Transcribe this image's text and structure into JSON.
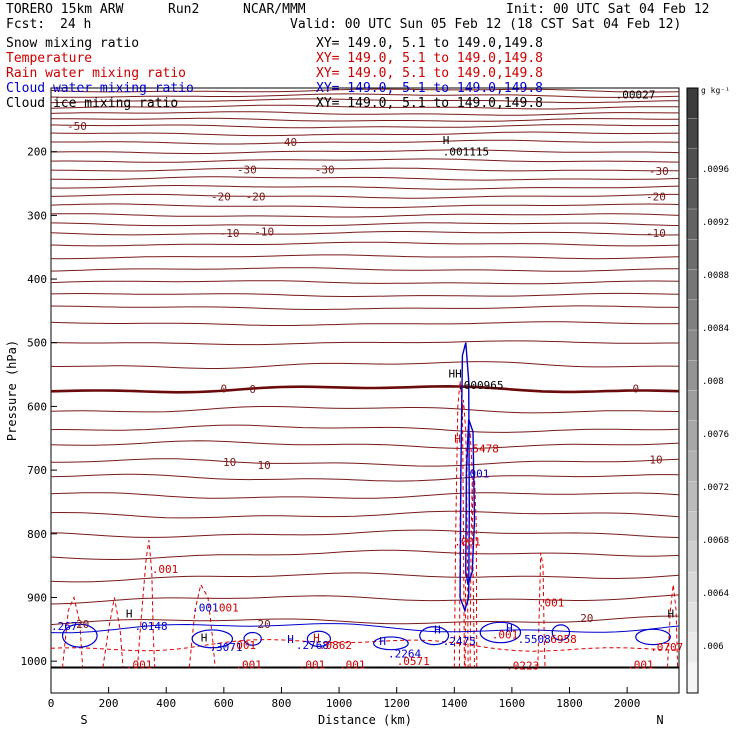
{
  "header": {
    "model": "TORERO 15km ARW",
    "run": "Run2",
    "org": "NCAR/MMM",
    "init": "Init: 00 UTC Sat 04 Feb 12",
    "fcst_label": "Fcst:",
    "fcst_value": "24 h",
    "valid": "Valid: 00 UTC Sun 05 Feb 12 (18 CST Sat 04 Feb 12)"
  },
  "legend": [
    {
      "name": "Snow mixing ratio",
      "xy": "XY= 149.0, 5.1 to 149.0,149.8",
      "color": "#000000"
    },
    {
      "name": "Temperature",
      "xy": "XY= 149.0, 5.1 to 149.0,149.8",
      "color": "#cc0000"
    },
    {
      "name": "Rain water mixing ratio",
      "xy": "XY= 149.0, 5.1 to 149.0,149.8",
      "color": "#cc0000"
    },
    {
      "name": "Cloud water mixing ratio",
      "xy": "XY= 149.0, 5.1 to 149.0,149.8",
      "color": "#0000cc"
    },
    {
      "name": "Cloud ice mixing ratio",
      "xy": "XY= 149.0, 5.1 to 149.0,149.8",
      "color": "#000000"
    }
  ],
  "chart_data": {
    "type": "contour",
    "xlabel": "Distance (km)",
    "ylabel": "Pressure (hPa)",
    "xlim": [
      0,
      2180
    ],
    "ylim": [
      1050,
      100
    ],
    "x_ticks": [
      0,
      200,
      400,
      600,
      800,
      1000,
      1200,
      1400,
      1600,
      1800,
      2000
    ],
    "y_ticks": [
      200,
      300,
      400,
      500,
      600,
      700,
      800,
      900,
      1000
    ],
    "x_end_labels": {
      "left": "S",
      "right": "N"
    },
    "colorbar": {
      "unit": "g kg⁻¹",
      "ticks": [
        ".0096",
        ".0092",
        ".0088",
        ".0084",
        ".008",
        ".0076",
        ".0072",
        ".0068",
        ".0064",
        ".006"
      ]
    },
    "temperature_contours": [
      {
        "label": "-50",
        "p_left": 160,
        "p_right": 160
      },
      {
        "label": "-40",
        "p_left": 185,
        "p_right": 188
      },
      {
        "label": "-30",
        "p_left": 228,
        "p_right": 228
      },
      {
        "label": "-20",
        "p_left": 268,
        "p_right": 270
      },
      {
        "label": "-10",
        "p_left": 328,
        "p_right": 325
      },
      {
        "label": "0",
        "p_left": 573,
        "p_right": 572
      },
      {
        "label": "10",
        "p_left": 688,
        "p_right": 692
      },
      {
        "label": "20",
        "p_left": 940,
        "p_right": 925
      }
    ],
    "temperature_labels": [
      {
        "text": "-50",
        "x": 90,
        "p": 160
      },
      {
        "text": "-40",
        "x": 820,
        "p": 185
      },
      {
        "text": "-30",
        "x": 680,
        "p": 228
      },
      {
        "text": "-30",
        "x": 950,
        "p": 228
      },
      {
        "text": "-30",
        "x": 2110,
        "p": 230
      },
      {
        "text": "-20",
        "x": 590,
        "p": 270
      },
      {
        "text": "-20",
        "x": 710,
        "p": 270
      },
      {
        "text": "-20",
        "x": 2100,
        "p": 270
      },
      {
        "text": "-10",
        "x": 620,
        "p": 328
      },
      {
        "text": "-10",
        "x": 740,
        "p": 325
      },
      {
        "text": "-10",
        "x": 2100,
        "p": 328
      },
      {
        "text": "0",
        "x": 600,
        "p": 572
      },
      {
        "text": "0",
        "x": 700,
        "p": 573
      },
      {
        "text": "0",
        "x": 2030,
        "p": 572
      },
      {
        "text": "10",
        "x": 620,
        "p": 687
      },
      {
        "text": "10",
        "x": 740,
        "p": 692
      },
      {
        "text": "10",
        "x": 2100,
        "p": 683
      },
      {
        "text": "20",
        "x": 110,
        "p": 942
      },
      {
        "text": "20",
        "x": 740,
        "p": 942
      },
      {
        "text": "20",
        "x": 1860,
        "p": 932
      }
    ],
    "value_labels": [
      {
        "text": "H",
        "x": 1360,
        "p": 182,
        "color": "#000000"
      },
      {
        "text": ".001115",
        "x": 1360,
        "p": 200,
        "color": "#000000"
      },
      {
        "text": ".00027",
        "x": 1960,
        "p": 110,
        "color": "#000000"
      },
      {
        "text": "HH",
        "x": 1380,
        "p": 548,
        "color": "#000000"
      },
      {
        "text": ".000965",
        "x": 1410,
        "p": 566,
        "color": "#000000"
      },
      {
        "text": "H",
        "x": 1400,
        "p": 650,
        "color": "#cc0000"
      },
      {
        "text": ".5478",
        "x": 1440,
        "p": 666,
        "color": "#cc0000"
      },
      {
        "text": ".001",
        "x": 1430,
        "p": 705,
        "color": "#0000cc"
      },
      {
        "text": ".001",
        "x": 1400,
        "p": 812,
        "color": "#cc0000"
      },
      {
        "text": ".001",
        "x": 350,
        "p": 855,
        "color": "#cc0000"
      },
      {
        "text": ".001",
        "x": 1690,
        "p": 908,
        "color": "#cc0000"
      },
      {
        "text": "H",
        "x": 260,
        "p": 925,
        "color": "#000000"
      },
      {
        "text": ".0148",
        "x": 290,
        "p": 945,
        "color": "#0000cc"
      },
      {
        "text": ".001",
        "x": 490,
        "p": 916,
        "color": "#0000cc"
      },
      {
        "text": ".001",
        "x": 560,
        "p": 916,
        "color": "#cc0000"
      },
      {
        "text": ".267",
        "x": 0,
        "p": 945,
        "color": "#0000cc"
      },
      {
        "text": "H",
        "x": 520,
        "p": 963,
        "color": "#000000"
      },
      {
        "text": ".3071",
        "x": 550,
        "p": 978,
        "color": "#0000cc"
      },
      {
        "text": ".001",
        "x": 620,
        "p": 975,
        "color": "#cc0000"
      },
      {
        "text": "H",
        "x": 820,
        "p": 965,
        "color": "#0000cc"
      },
      {
        "text": ".2768",
        "x": 850,
        "p": 975,
        "color": "#0000cc"
      },
      {
        "text": ".0862",
        "x": 930,
        "p": 975,
        "color": "#cc0000"
      },
      {
        "text": "H",
        "x": 910,
        "p": 963,
        "color": "#cc0000"
      },
      {
        "text": "H",
        "x": 1140,
        "p": 968,
        "color": "#0000cc"
      },
      {
        "text": ".2264",
        "x": 1170,
        "p": 988,
        "color": "#0000cc"
      },
      {
        "text": "H",
        "x": 1330,
        "p": 950,
        "color": "#0000cc"
      },
      {
        "text": ".2475",
        "x": 1360,
        "p": 968,
        "color": "#0000cc"
      },
      {
        "text": ".0571",
        "x": 1200,
        "p": 1000,
        "color": "#cc0000"
      },
      {
        "text": ".001",
        "x": 1530,
        "p": 958,
        "color": "#cc0000"
      },
      {
        "text": "H",
        "x": 1580,
        "p": 948,
        "color": "#0000cc"
      },
      {
        "text": ".5508",
        "x": 1620,
        "p": 965,
        "color": "#0000cc"
      },
      {
        "text": ".6958",
        "x": 1710,
        "p": 965,
        "color": "#cc0000"
      },
      {
        "text": "H",
        "x": 2140,
        "p": 925,
        "color": "#000000"
      },
      {
        "text": ".0707",
        "x": 2080,
        "p": 978,
        "color": "#cc0000"
      },
      {
        "text": ".001",
        "x": 260,
        "p": 1005,
        "color": "#cc0000"
      },
      {
        "text": ".001",
        "x": 640,
        "p": 1005,
        "color": "#cc0000"
      },
      {
        "text": ".001",
        "x": 860,
        "p": 1005,
        "color": "#cc0000"
      },
      {
        "text": ".001",
        "x": 1000,
        "p": 1005,
        "color": "#cc0000"
      },
      {
        "text": ".0223",
        "x": 1580,
        "p": 1007,
        "color": "#cc0000"
      },
      {
        "text": ".001",
        "x": 2000,
        "p": 1005,
        "color": "#cc0000"
      }
    ]
  }
}
